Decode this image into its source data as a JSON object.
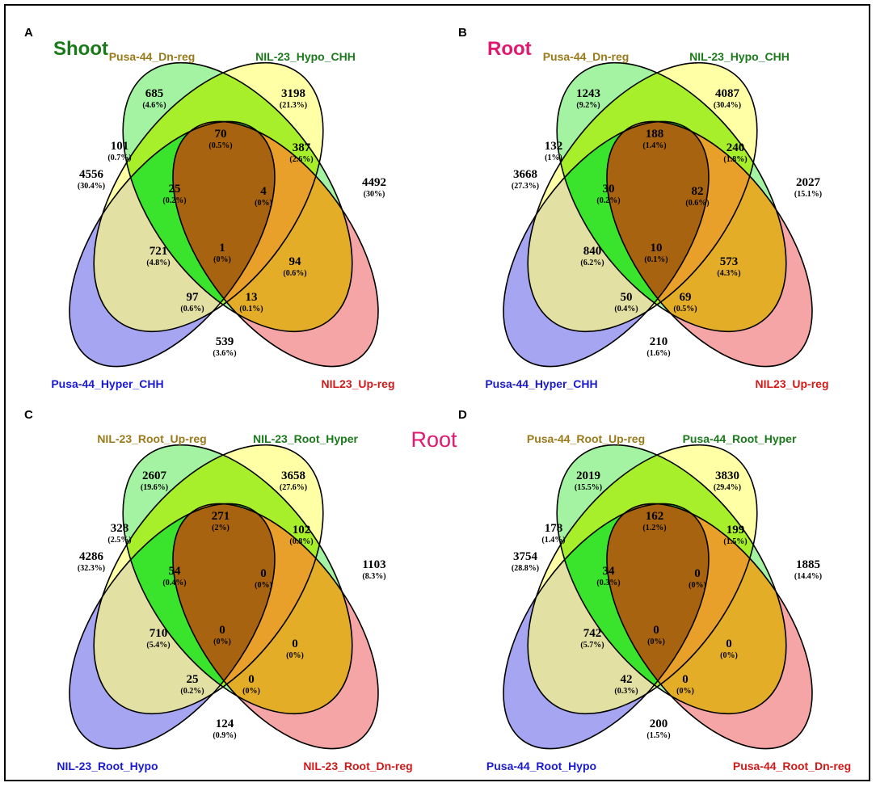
{
  "figure": {
    "center_title": "Root",
    "center_title_color": "#e0186f",
    "set_colors": [
      "#9c9cf2",
      "#ffff96",
      "#7ef58a",
      "#f58e8e"
    ],
    "label_colors": [
      "#1a1ad0",
      "#9a7a1a",
      "#1a7a1a",
      "#d01a1a"
    ],
    "region_colors": {
      "A": "#a5a5f2",
      "B": "#ffffa5",
      "C": "#a3f3a3",
      "D": "#f5a5a5",
      "AB": "#e3e0a3",
      "AC": "#2be6b0",
      "AD": "#b9a6d9",
      "BC": "#a8ef2b",
      "BD": "#e5a12b",
      "CD": "#e3ad28",
      "ABC": "#3ae32c",
      "ABD": "#e5259b",
      "ACD": "#e89e5b",
      "BCD": "#e8a02a",
      "ABCD": "#a7630f",
      "ABD_core": "#de2ba3",
      "ABCD_core": "#a0600d"
    }
  },
  "panels": [
    {
      "letter": "A",
      "title": "Shoot",
      "title_color": "#1a7a1a",
      "labels": [
        "Pusa-44_Hyper_CHH",
        "Pusa-44_Dn-reg",
        "NIL-23_Hypo_CHH",
        "NIL23_Up-reg"
      ],
      "regions": [
        {
          "set": "A",
          "value": "4556",
          "pct": "(30.4%)"
        },
        {
          "set": "B",
          "value": "685",
          "pct": "(4.6%)"
        },
        {
          "set": "C",
          "value": "3198",
          "pct": "(21.3%)"
        },
        {
          "set": "D",
          "value": "4492",
          "pct": "(30%)"
        },
        {
          "set": "AB",
          "value": "101",
          "pct": "(0.7%)"
        },
        {
          "set": "BC",
          "value": "70",
          "pct": "(0.5%)"
        },
        {
          "set": "CD",
          "value": "387",
          "pct": "(2.6%)"
        },
        {
          "set": "ABC",
          "value": "25",
          "pct": "(0.2%)"
        },
        {
          "set": "BCD",
          "value": "4",
          "pct": "(0%)"
        },
        {
          "set": "ABCD",
          "value": "1",
          "pct": "(0%)"
        },
        {
          "set": "AC",
          "value": "721",
          "pct": "(4.8%)"
        },
        {
          "set": "ACD",
          "value": "94",
          "pct": "(0.6%)"
        },
        {
          "set": "ABD",
          "value": "97",
          "pct": "(0.6%)"
        },
        {
          "set": "AD",
          "value": "13",
          "pct": "(0.1%)"
        },
        {
          "set": "BD",
          "value": "539",
          "pct": "(3.6%)"
        }
      ]
    },
    {
      "letter": "B",
      "title": "Root",
      "title_color": "#e0186f",
      "labels": [
        "Pusa-44_Hyper_CHH",
        "Pusa-44_Dn-reg",
        "NIL-23_Hypo_CHH",
        "NIL23_Up-reg"
      ],
      "regions": [
        {
          "set": "A",
          "value": "3668",
          "pct": "(27.3%)"
        },
        {
          "set": "B",
          "value": "1243",
          "pct": "(9.2%)"
        },
        {
          "set": "C",
          "value": "4087",
          "pct": "(30.4%)"
        },
        {
          "set": "D",
          "value": "2027",
          "pct": "(15.1%)"
        },
        {
          "set": "AB",
          "value": "132",
          "pct": "(1%)"
        },
        {
          "set": "BC",
          "value": "188",
          "pct": "(1.4%)"
        },
        {
          "set": "CD",
          "value": "240",
          "pct": "(1.8%)"
        },
        {
          "set": "ABC",
          "value": "30",
          "pct": "(0.2%)"
        },
        {
          "set": "BCD",
          "value": "82",
          "pct": "(0.6%)"
        },
        {
          "set": "ABCD",
          "value": "10",
          "pct": "(0.1%)"
        },
        {
          "set": "AC",
          "value": "840",
          "pct": "(6.2%)"
        },
        {
          "set": "ACD",
          "value": "573",
          "pct": "(4.3%)"
        },
        {
          "set": "ABD",
          "value": "50",
          "pct": "(0.4%)"
        },
        {
          "set": "AD",
          "value": "69",
          "pct": "(0.5%)"
        },
        {
          "set": "BD",
          "value": "210",
          "pct": "(1.6%)"
        }
      ]
    },
    {
      "letter": "C",
      "title": "",
      "title_color": "#e0186f",
      "labels": [
        "NIL-23_Root_Hypo",
        "NIL-23_Root_Up-reg",
        "NIL-23_Root_Hyper",
        "NIL-23_Root_Dn-reg"
      ],
      "regions": [
        {
          "set": "A",
          "value": "4286",
          "pct": "(32.3%)"
        },
        {
          "set": "B",
          "value": "2607",
          "pct": "(19.6%)"
        },
        {
          "set": "C",
          "value": "3658",
          "pct": "(27.6%)"
        },
        {
          "set": "D",
          "value": "1103",
          "pct": "(8.3%)"
        },
        {
          "set": "AB",
          "value": "328",
          "pct": "(2.5%)"
        },
        {
          "set": "BC",
          "value": "271",
          "pct": "(2%)"
        },
        {
          "set": "CD",
          "value": "102",
          "pct": "(0.8%)"
        },
        {
          "set": "ABC",
          "value": "54",
          "pct": "(0.4%)"
        },
        {
          "set": "BCD",
          "value": "0",
          "pct": "(0%)"
        },
        {
          "set": "ABCD",
          "value": "0",
          "pct": "(0%)"
        },
        {
          "set": "AC",
          "value": "710",
          "pct": "(5.4%)"
        },
        {
          "set": "ACD",
          "value": "0",
          "pct": "(0%)"
        },
        {
          "set": "ABD",
          "value": "25",
          "pct": "(0.2%)"
        },
        {
          "set": "AD",
          "value": "0",
          "pct": "(0%)"
        },
        {
          "set": "BD",
          "value": "124",
          "pct": "(0.9%)"
        }
      ]
    },
    {
      "letter": "D",
      "title": "",
      "title_color": "#e0186f",
      "labels": [
        "Pusa-44_Root_Hypo",
        "Pusa-44_Root_Up-reg",
        "Pusa-44_Root_Hyper",
        "Pusa-44_Root_Dn-reg"
      ],
      "regions": [
        {
          "set": "A",
          "value": "3754",
          "pct": "(28.8%)"
        },
        {
          "set": "B",
          "value": "2019",
          "pct": "(15.5%)"
        },
        {
          "set": "C",
          "value": "3830",
          "pct": "(29.4%)"
        },
        {
          "set": "D",
          "value": "1885",
          "pct": "(14.4%)"
        },
        {
          "set": "AB",
          "value": "178",
          "pct": "(1.4%)"
        },
        {
          "set": "BC",
          "value": "162",
          "pct": "(1.2%)"
        },
        {
          "set": "CD",
          "value": "199",
          "pct": "(1.5%)"
        },
        {
          "set": "ABC",
          "value": "34",
          "pct": "(0.3%)"
        },
        {
          "set": "BCD",
          "value": "0",
          "pct": "(0%)"
        },
        {
          "set": "ABCD",
          "value": "0",
          "pct": "(0%)"
        },
        {
          "set": "AC",
          "value": "742",
          "pct": "(5.7%)"
        },
        {
          "set": "ACD",
          "value": "0",
          "pct": "(0%)"
        },
        {
          "set": "ABD",
          "value": "42",
          "pct": "(0.3%)"
        },
        {
          "set": "AD",
          "value": "0",
          "pct": "(0%)"
        },
        {
          "set": "BD",
          "value": "200",
          "pct": "(1.5%)"
        }
      ]
    }
  ]
}
